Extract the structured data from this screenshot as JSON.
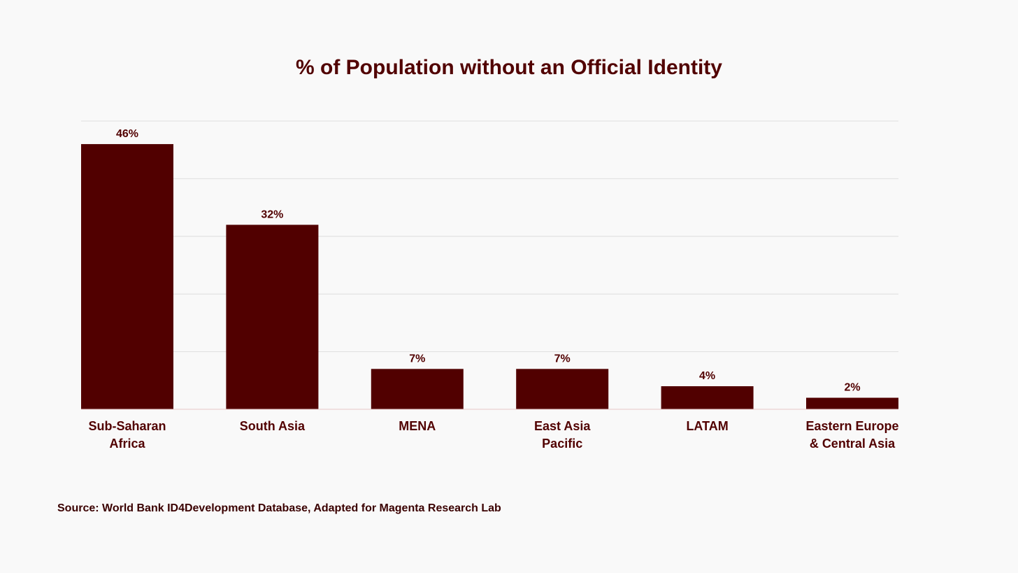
{
  "colors": {
    "bar": "#510000",
    "text": "#510000",
    "grid": "#dedede",
    "baseline": "#e8c8c8",
    "background": "#f9f9f9"
  },
  "chart_data": {
    "type": "bar",
    "title": "% of Population without an Official Identity",
    "xlabel": "",
    "ylabel": "",
    "ylim": [
      0,
      50
    ],
    "grid": true,
    "legend": "none",
    "categories": [
      [
        "Sub-Saharan",
        "Africa"
      ],
      [
        "South Asia"
      ],
      [
        "MENA"
      ],
      [
        "East Asia",
        "Pacific"
      ],
      [
        "LATAM"
      ],
      [
        "Eastern Europe",
        "& Central Asia"
      ]
    ],
    "values": [
      46,
      32,
      7,
      7,
      4,
      2
    ],
    "value_labels": [
      "46%",
      "32%",
      "7%",
      "7%",
      "4%",
      "2%"
    ]
  },
  "footer": {
    "source": "Source: World Bank ID4Development Database, Adapted for Magenta Research Lab"
  }
}
